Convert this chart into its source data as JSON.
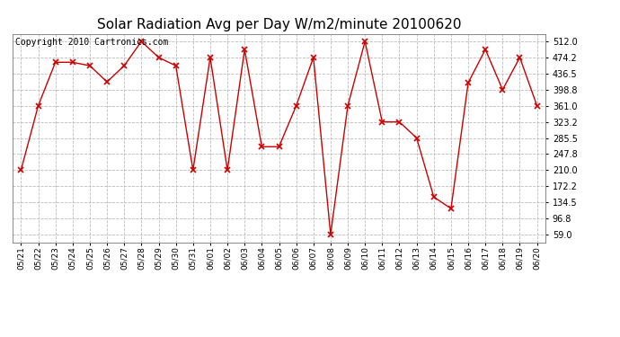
{
  "title": "Solar Radiation Avg per Day W/m2/minute 20100620",
  "copyright": "Copyright 2010 Cartronics.com",
  "dates": [
    "05/21",
    "05/22",
    "05/23",
    "05/24",
    "05/25",
    "05/26",
    "05/27",
    "05/28",
    "05/29",
    "05/30",
    "05/31",
    "06/01",
    "06/02",
    "06/03",
    "06/04",
    "06/05",
    "06/06",
    "06/07",
    "06/08",
    "06/09",
    "06/10",
    "06/11",
    "06/12",
    "06/13",
    "06/14",
    "06/15",
    "06/16",
    "06/17",
    "06/18",
    "06/19",
    "06/20"
  ],
  "values": [
    210.0,
    361.0,
    463.0,
    463.0,
    455.0,
    417.0,
    455.0,
    512.0,
    474.2,
    455.0,
    210.0,
    474.2,
    210.0,
    493.0,
    265.0,
    265.0,
    361.0,
    474.2,
    59.0,
    361.0,
    512.0,
    323.2,
    323.2,
    285.5,
    147.0,
    120.0,
    415.0,
    493.0,
    398.8,
    474.2,
    361.0
  ],
  "line_color": "#cc0000",
  "marker": "x",
  "marker_color": "#cc0000",
  "bg_color": "#ffffff",
  "grid_color": "#bbbbbb",
  "yticks": [
    59.0,
    96.8,
    134.5,
    172.2,
    210.0,
    247.8,
    285.5,
    323.2,
    361.0,
    398.8,
    436.5,
    474.2,
    512.0
  ],
  "ylim": [
    40,
    530
  ],
  "title_fontsize": 11,
  "copyright_fontsize": 7
}
